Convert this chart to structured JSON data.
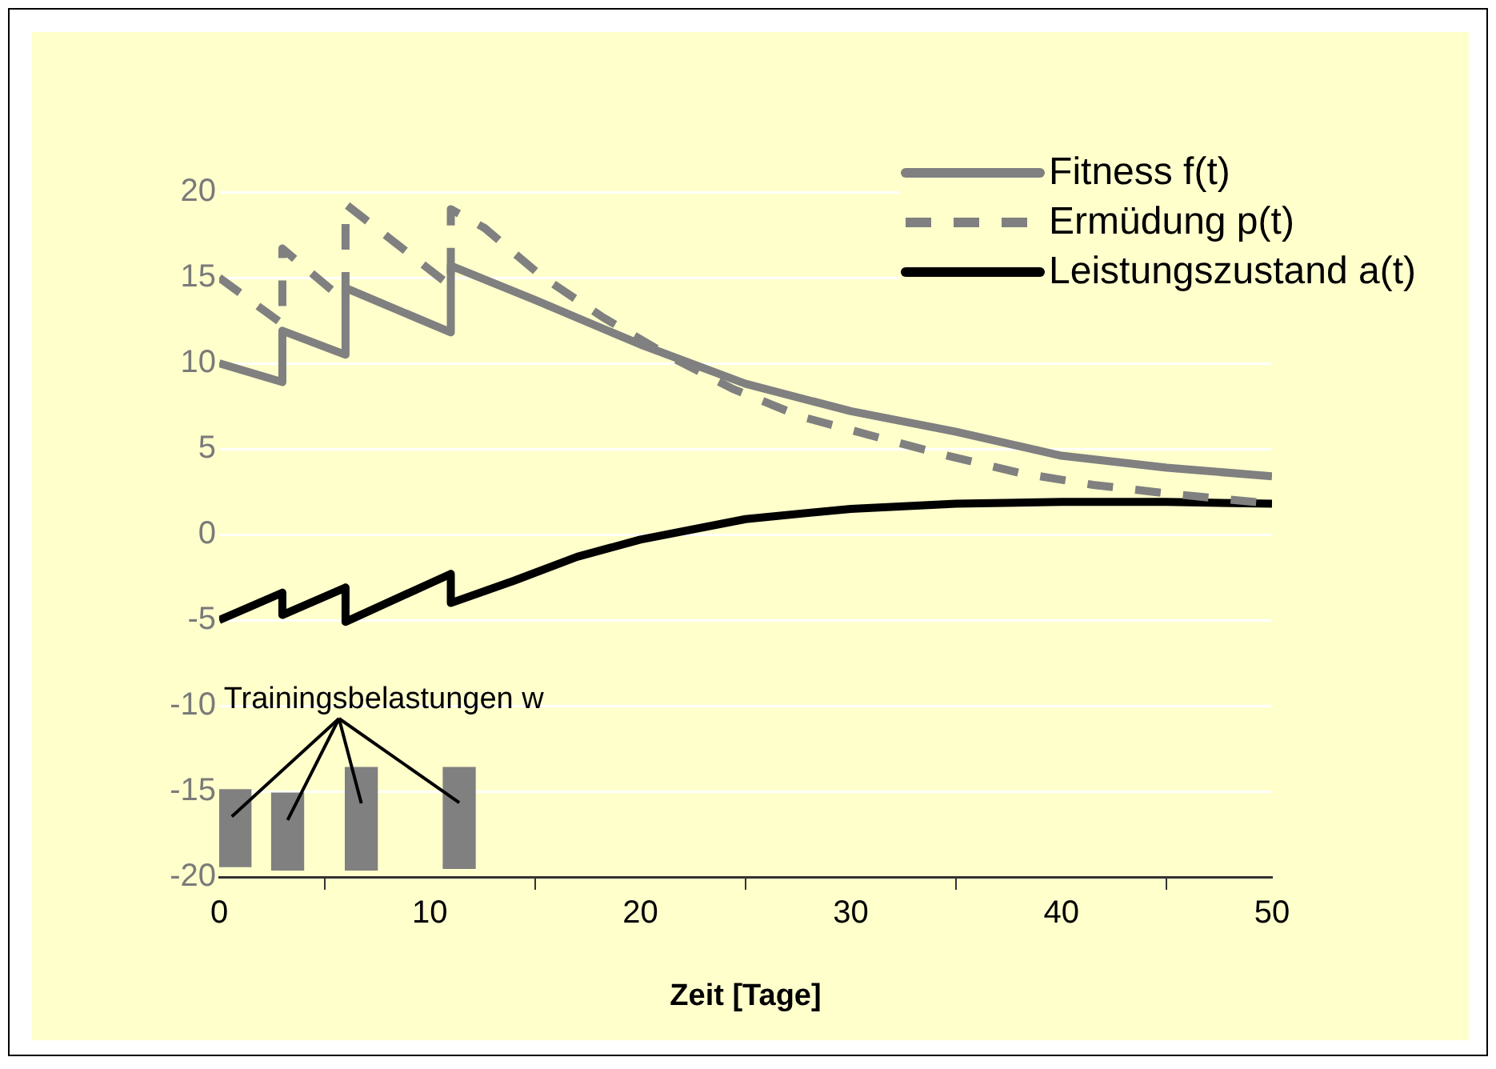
{
  "chart_data": {
    "type": "line",
    "xlabel": "Zeit [Tage]",
    "xlim": [
      0,
      50
    ],
    "xticks": [
      0,
      10,
      20,
      30,
      40,
      50
    ],
    "ylim": [
      -20,
      20
    ],
    "yticks": [
      -20,
      -15,
      -10,
      -5,
      0,
      5,
      10,
      15,
      20
    ],
    "grid": "y",
    "legend": "top right",
    "marker": "none",
    "annotations": [
      "Trainingsbelastungen w"
    ],
    "series": [
      {
        "name": "Fitness f(t)",
        "color": "#808080",
        "line_style": "solid",
        "x": [
          0,
          3,
          3,
          6,
          6,
          11,
          11,
          15,
          20,
          25,
          30,
          35,
          40,
          45,
          50
        ],
        "values": [
          10,
          8.9,
          11.9,
          10.5,
          14.4,
          11.8,
          15.7,
          13.7,
          11.1,
          8.8,
          7.2,
          6,
          4.6,
          3.9,
          3.4
        ]
      },
      {
        "name": "Ermüdung p(t)",
        "color": "#808080",
        "line_style": "dashed",
        "x": [
          0,
          3,
          3,
          6,
          6,
          11,
          11,
          12.6,
          15.3,
          18.2,
          21.4,
          24.4,
          27.6,
          31.2,
          34.6,
          38,
          41.5,
          45,
          50
        ],
        "values": [
          15,
          12.3,
          16.7,
          13.6,
          19.3,
          14.5,
          19,
          17.9,
          15.1,
          12.7,
          10.4,
          8.5,
          6.9,
          5.7,
          4.6,
          3.6,
          2.9,
          2.4,
          1.8
        ]
      },
      {
        "name": "Leistungszustand a(t)",
        "color": "#000000",
        "line_style": "solid",
        "x": [
          0,
          3,
          3,
          6,
          6,
          11,
          11,
          14,
          17,
          20,
          25,
          30,
          35,
          40,
          45,
          50
        ],
        "values": [
          -5,
          -3.4,
          -4.7,
          -3.1,
          -5.1,
          -2.3,
          -4,
          -2.7,
          -1.3,
          -0.3,
          0.9,
          1.5,
          1.8,
          1.9,
          1.9,
          1.8
        ]
      },
      {
        "type": "bar",
        "color": "#808080",
        "x": [
          0.75,
          3.25,
          6.75,
          11.4
        ],
        "base": [
          -19.4,
          -19.6,
          -19.6,
          -19.5
        ],
        "values": [
          4.5,
          4.5,
          6,
          5.9
        ]
      }
    ]
  }
}
